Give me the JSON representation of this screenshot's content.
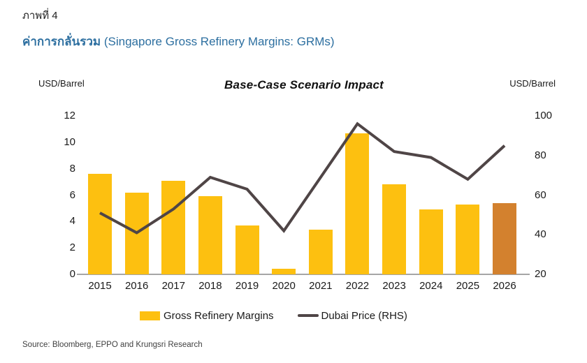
{
  "header": {
    "figure_label": "ภาพที่ 4",
    "title_thai": "ค่าการกลั่นรวม",
    "title_en": "(Singapore Gross Refinery Margins: GRMs)"
  },
  "chart_data": {
    "type": "bar",
    "title": "Base-Case Scenario Impact",
    "categories": [
      "2015",
      "2016",
      "2017",
      "2018",
      "2019",
      "2020",
      "2021",
      "2022",
      "2023",
      "2024",
      "2025",
      "2026"
    ],
    "left_axis": {
      "label": "USD/Barrel",
      "min": 0,
      "max": 12,
      "ticks": [
        0,
        2,
        4,
        6,
        8,
        10,
        12
      ]
    },
    "right_axis": {
      "label": "USD/Barrel",
      "min": 20,
      "max": 100,
      "ticks": [
        20,
        40,
        60,
        80,
        100
      ]
    },
    "series": [
      {
        "name": "Gross Refinery Margins",
        "type": "bar",
        "axis": "left",
        "values": [
          7.6,
          6.2,
          7.1,
          5.9,
          3.7,
          0.4,
          3.4,
          10.7,
          6.8,
          4.9,
          5.3,
          5.4
        ],
        "colors": [
          "#FDC010",
          "#FDC010",
          "#FDC010",
          "#FDC010",
          "#FDC010",
          "#FDC010",
          "#FDC010",
          "#FDC010",
          "#FDC010",
          "#FDC010",
          "#FDC010",
          "#D3812E"
        ]
      },
      {
        "name": "Dubai Price (RHS)",
        "type": "line",
        "axis": "right",
        "values": [
          51,
          41,
          53,
          69,
          63,
          42,
          69,
          96,
          82,
          79,
          68,
          85
        ],
        "color": "#4F4546"
      }
    ],
    "legend": [
      {
        "label": "Gross Refinery Margins",
        "swatch": "#FDC010"
      },
      {
        "label": "Dubai Price (RHS)",
        "swatch": "#4F4546"
      }
    ],
    "grid": "off",
    "legend_position": "bottom"
  },
  "source": "Source: Bloomberg, EPPO and Krungsri Research",
  "colors": {
    "title_blue": "#2D6FA0",
    "bar_yellow": "#FDC010",
    "bar_highlight_orange": "#D3812E",
    "line_dark": "#4F4546",
    "axis_gray": "#A6A6A6"
  }
}
